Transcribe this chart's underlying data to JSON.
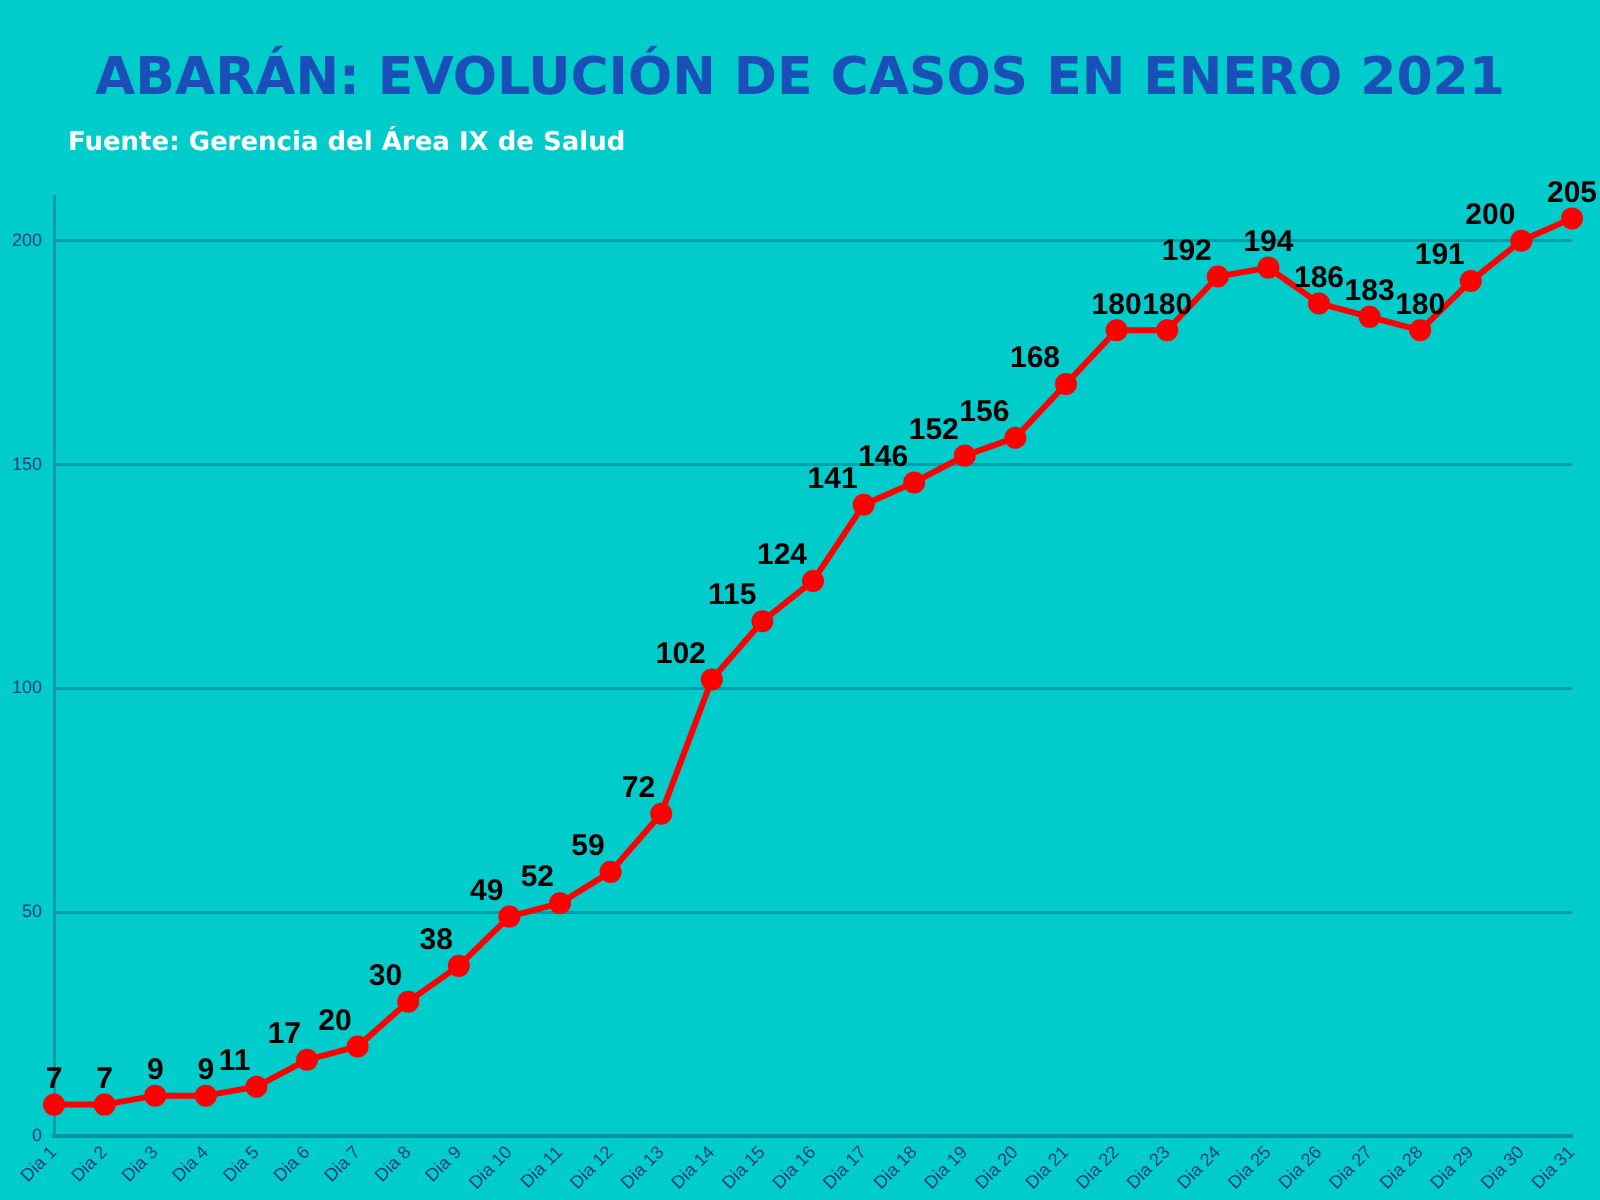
{
  "chart_data": {
    "type": "line",
    "title": "ABARÁN: EVOLUCIÓN DE CASOS EN ENERO 2021",
    "subtitle": "Fuente: Gerencia del Área IX de Salud",
    "categories": [
      "Dia 1",
      "Dia 2",
      "Dia 3",
      "Dia 4",
      "Dia 5",
      "Dia 6",
      "Dia 7",
      "Dia 8",
      "Dia 9",
      "Dia 10",
      "Dia 11",
      "Dia 12",
      "Dia 13",
      "Dia 14",
      "Dia 15",
      "Dia 16",
      "Dia 17",
      "Dia 18",
      "Dia 19",
      "Dia 20",
      "Dia 21",
      "Dia 22",
      "Dia 23",
      "Dia 24",
      "Dia 25",
      "Dia 26",
      "Dia 27",
      "Dia 28",
      "Dia 29",
      "Dia 30",
      "Dia 31"
    ],
    "series": [
      {
        "color": "#ff0000",
        "values": [
          7,
          7,
          9,
          9,
          11,
          17,
          20,
          30,
          38,
          49,
          52,
          59,
          72,
          102,
          115,
          124,
          141,
          146,
          152,
          156,
          168,
          180,
          180,
          192,
          194,
          186,
          183,
          180,
          191,
          200,
          205
        ]
      }
    ],
    "ylim": [
      0,
      210
    ],
    "yticks": [
      0,
      50,
      100,
      150,
      200
    ],
    "grid": "y",
    "marker": "circle",
    "data_labels": true,
    "legend": false
  }
}
